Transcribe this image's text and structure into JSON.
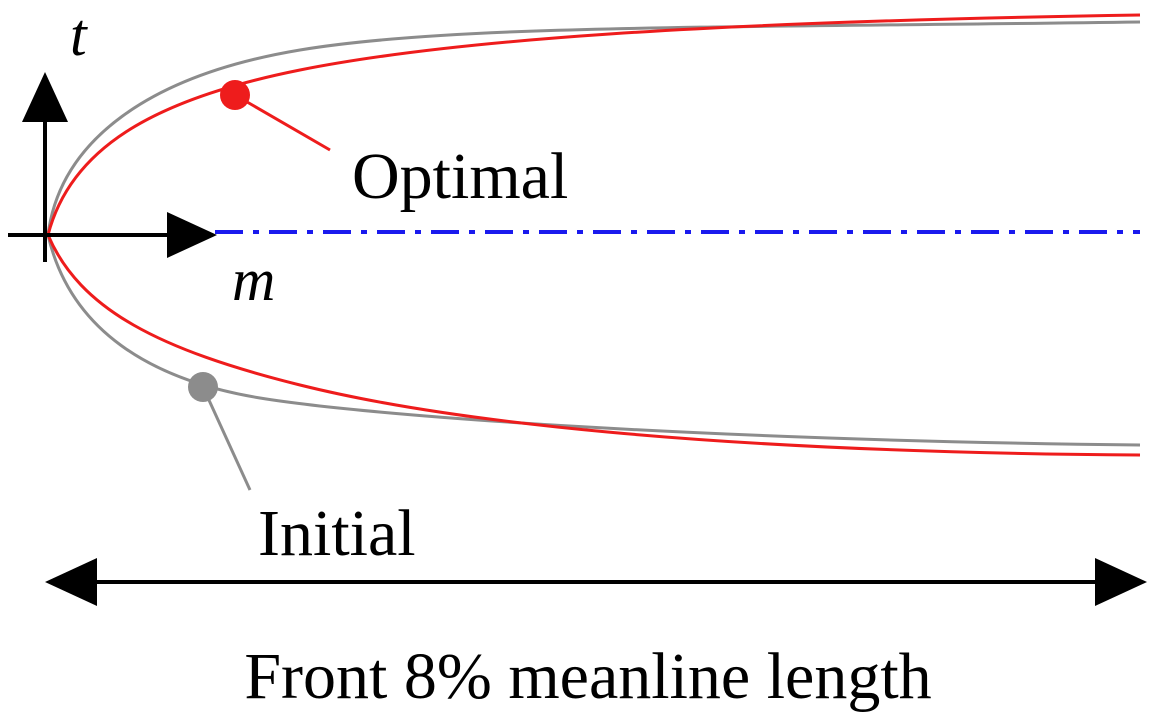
{
  "axes": {
    "vertical": "t",
    "horizontal": "m"
  },
  "curves": {
    "optimal": "Optimal",
    "initial": "Initial"
  },
  "caption": "Front 8% meanline length"
}
